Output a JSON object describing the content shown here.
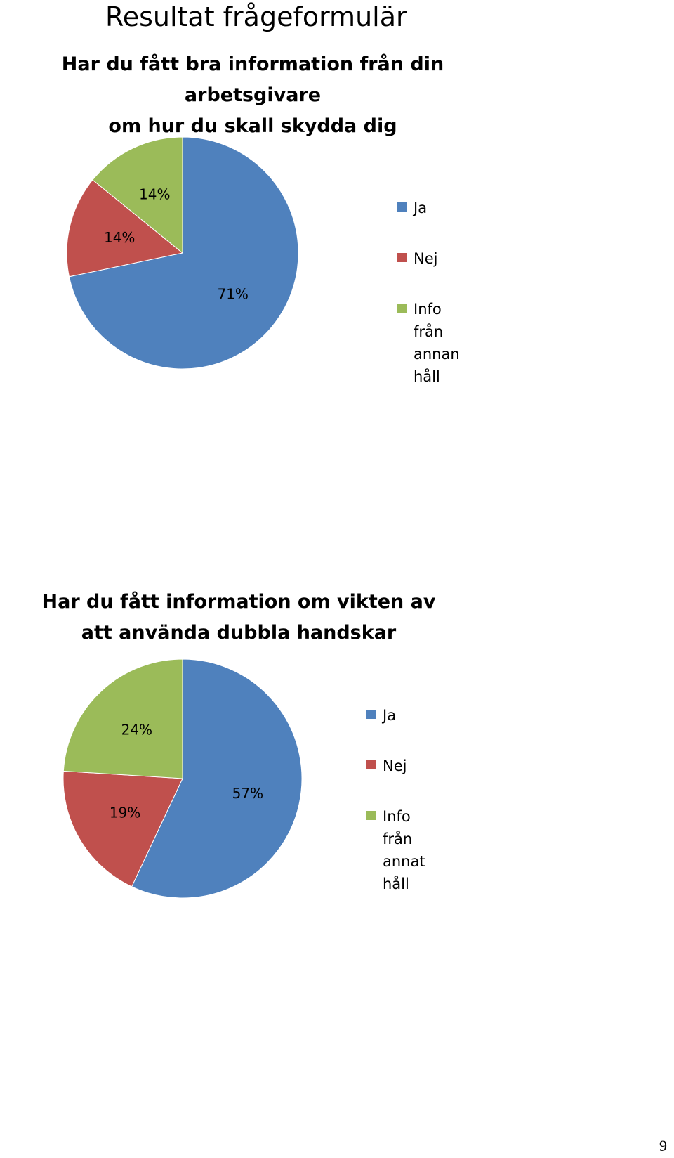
{
  "page": {
    "title": "Resultat frågeformulär",
    "page_number": "9"
  },
  "colors": {
    "ja": "#4F81BD",
    "nej": "#C0504D",
    "info": "#9BBB59"
  },
  "chart_data": [
    {
      "type": "pie",
      "title": "Har du fått bra information från din arbetsgivare om hur du skall skydda dig",
      "title_lines": [
        "Har du fått bra information från din arbetsgivare",
        "om hur du skall skydda dig"
      ],
      "categories": [
        "Ja",
        "Nej",
        "Info från annan håll"
      ],
      "legend_labels": [
        "Ja",
        "Nej",
        "Info från\nannan håll"
      ],
      "values": [
        71,
        14,
        14
      ],
      "data_labels": [
        "71%",
        "14%",
        "14%"
      ],
      "legend": "right"
    },
    {
      "type": "pie",
      "title": "Har du fått information om vikten av att använda dubbla handskar",
      "title_lines": [
        "Har du fått information om vikten av",
        "att använda dubbla handskar"
      ],
      "categories": [
        "Ja",
        "Nej",
        "Info från annat håll"
      ],
      "legend_labels": [
        "Ja",
        "Nej",
        "Info från annat\nhåll"
      ],
      "values": [
        57,
        19,
        24
      ],
      "data_labels": [
        "57%",
        "19%",
        "24%"
      ],
      "legend": "right"
    }
  ]
}
